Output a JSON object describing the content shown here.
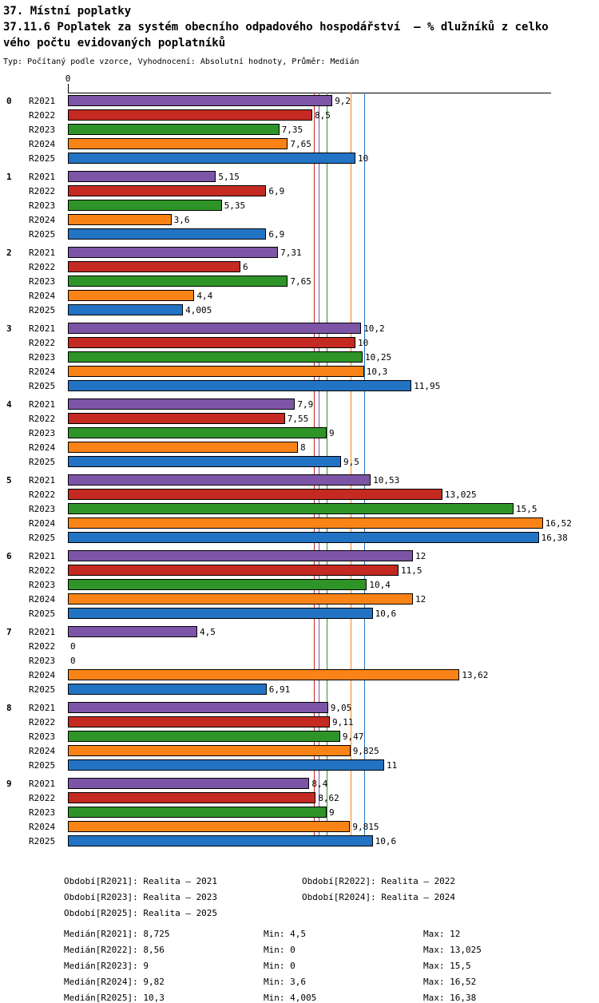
{
  "header": {
    "title": "37. Místní poplatky",
    "subtitle_line1": "37.11.6 Poplatek za systém obecního odpadového hospodářství  – % dlužníků z celko",
    "subtitle_line2": "vého počtu evidovaných poplatníků",
    "meta": "Typ: Počítaný podle vzorce, Vyhodnocení: Absolutní hodnoty, Průměr: Medián"
  },
  "chart_data": {
    "type": "bar",
    "orientation": "horizontal",
    "title": "37.11.6 Poplatek za systém obecního odpadového hospodářství – % dlužníků z celkového počtu evidovaných poplatníků",
    "value_format": "czech-decimal-comma",
    "axis_origin_label": "0",
    "xlim": [
      0,
      16.8
    ],
    "grid": false,
    "legend_position": "bottom",
    "categories": [
      "0",
      "1",
      "2",
      "3",
      "4",
      "5",
      "6",
      "7",
      "8",
      "9"
    ],
    "series": [
      {
        "name": "R2021",
        "color": "#7d55a6",
        "median": 8.725,
        "min": 4.5,
        "max": 12
      },
      {
        "name": "R2022",
        "color": "#c42a21",
        "median": 8.56,
        "min": 0,
        "max": 13.025
      },
      {
        "name": "R2023",
        "color": "#2e9428",
        "median": 9,
        "min": 0,
        "max": 15.5
      },
      {
        "name": "R2024",
        "color": "#f98316",
        "median": 9.82,
        "min": 3.6,
        "max": 16.52
      },
      {
        "name": "R2025",
        "color": "#2273c3",
        "median": 10.3,
        "min": 4.005,
        "max": 16.38
      }
    ],
    "groups": [
      {
        "label": "0",
        "values": [
          9.2,
          8.5,
          7.35,
          7.65,
          10
        ],
        "value_labels": [
          "9,2",
          "8,5",
          "7,35",
          "7,65",
          "10"
        ]
      },
      {
        "label": "1",
        "values": [
          5.15,
          6.9,
          5.35,
          3.6,
          6.9
        ],
        "value_labels": [
          "5,15",
          "6,9",
          "5,35",
          "3,6",
          "6,9"
        ]
      },
      {
        "label": "2",
        "values": [
          7.31,
          6,
          7.65,
          4.4,
          4.005
        ],
        "value_labels": [
          "7,31",
          "6",
          "7,65",
          "4,4",
          "4,005"
        ]
      },
      {
        "label": "3",
        "values": [
          10.2,
          10,
          10.25,
          10.3,
          11.95
        ],
        "value_labels": [
          "10,2",
          "10",
          "10,25",
          "10,3",
          "11,95"
        ]
      },
      {
        "label": "4",
        "values": [
          7.9,
          7.55,
          9,
          8,
          9.5
        ],
        "value_labels": [
          "7,9",
          "7,55",
          "9",
          "8",
          "9,5"
        ]
      },
      {
        "label": "5",
        "values": [
          10.53,
          13.025,
          15.5,
          16.52,
          16.38
        ],
        "value_labels": [
          "10,53",
          "13,025",
          "15,5",
          "16,52",
          "16,38"
        ]
      },
      {
        "label": "6",
        "values": [
          12,
          11.5,
          10.4,
          12,
          10.6
        ],
        "value_labels": [
          "12",
          "11,5",
          "10,4",
          "12",
          "10,6"
        ]
      },
      {
        "label": "7",
        "values": [
          4.5,
          0,
          0,
          13.62,
          6.91
        ],
        "value_labels": [
          "4,5",
          "0",
          "0",
          "13,62",
          "6,91"
        ]
      },
      {
        "label": "8",
        "values": [
          9.05,
          9.11,
          9.47,
          9.825,
          11
        ],
        "value_labels": [
          "9,05",
          "9,11",
          "9,47",
          "9,825",
          "11"
        ]
      },
      {
        "label": "9",
        "values": [
          8.4,
          8.62,
          9,
          9.815,
          10.6
        ],
        "value_labels": [
          "8,4",
          "8,62",
          "9",
          "9,815",
          "10,6"
        ]
      }
    ]
  },
  "footer": {
    "periods": [
      "Období[R2021]: Realita – 2021",
      "Období[R2022]: Realita – 2022",
      "Období[R2023]: Realita – 2023",
      "Období[R2024]: Realita – 2024",
      "Období[R2025]: Realita – 2025"
    ],
    "stats": [
      {
        "median": "Medián[R2021]: 8,725",
        "min": "Min: 4,5",
        "max": "Max: 12"
      },
      {
        "median": "Medián[R2022]: 8,56",
        "min": "Min: 0",
        "max": "Max: 13,025"
      },
      {
        "median": "Medián[R2023]: 9",
        "min": "Min: 0",
        "max": "Max: 15,5"
      },
      {
        "median": "Medián[R2024]: 9,82",
        "min": "Min: 3,6",
        "max": "Max: 16,52"
      },
      {
        "median": "Medián[R2025]: 10,3",
        "min": "Min: 4,005",
        "max": "Max: 16,38"
      }
    ]
  }
}
